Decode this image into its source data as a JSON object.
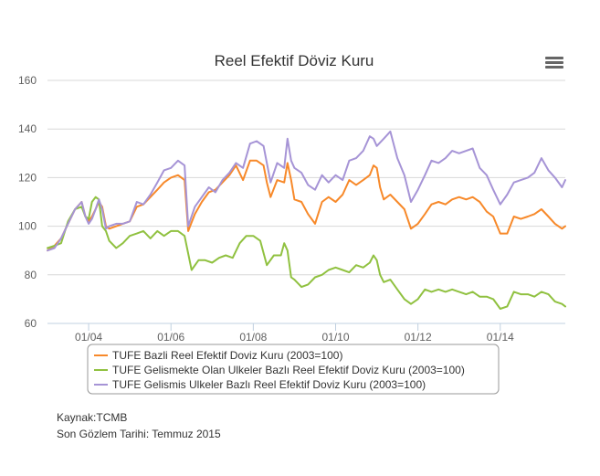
{
  "chart_data": {
    "type": "line",
    "title": "Reel Efektif Döviz Kuru",
    "ylim": [
      60,
      160
    ],
    "yticks": [
      60,
      80,
      100,
      120,
      140,
      160
    ],
    "xlim": [
      2003.0,
      2015.58
    ],
    "xticks": [
      {
        "label": "01/04",
        "x": 2004.0
      },
      {
        "label": "01/06",
        "x": 2006.0
      },
      {
        "label": "01/08",
        "x": 2008.0
      },
      {
        "label": "01/10",
        "x": 2010.0
      },
      {
        "label": "01/12",
        "x": 2012.0
      },
      {
        "label": "01/14",
        "x": 2014.0
      }
    ],
    "series": [
      {
        "name": "TUFE Bazli Reel Efektif Doviz Kuru (2003=100)",
        "color": "#f7892a",
        "points": [
          [
            2003.0,
            90
          ],
          [
            2003.17,
            92
          ],
          [
            2003.33,
            95
          ],
          [
            2003.5,
            101
          ],
          [
            2003.67,
            107
          ],
          [
            2003.83,
            110
          ],
          [
            2003.92,
            104
          ],
          [
            2004.0,
            102
          ],
          [
            2004.08,
            104
          ],
          [
            2004.17,
            107
          ],
          [
            2004.25,
            110
          ],
          [
            2004.33,
            108
          ],
          [
            2004.42,
            100
          ],
          [
            2004.5,
            99
          ],
          [
            2004.67,
            100
          ],
          [
            2004.83,
            101
          ],
          [
            2005.0,
            102
          ],
          [
            2005.17,
            108
          ],
          [
            2005.33,
            109
          ],
          [
            2005.5,
            112
          ],
          [
            2005.67,
            115
          ],
          [
            2005.83,
            118
          ],
          [
            2006.0,
            120
          ],
          [
            2006.17,
            121
          ],
          [
            2006.33,
            119
          ],
          [
            2006.42,
            98
          ],
          [
            2006.58,
            105
          ],
          [
            2006.75,
            110
          ],
          [
            2006.92,
            114
          ],
          [
            2007.08,
            115
          ],
          [
            2007.25,
            118
          ],
          [
            2007.42,
            121
          ],
          [
            2007.58,
            125
          ],
          [
            2007.75,
            119
          ],
          [
            2007.92,
            127
          ],
          [
            2008.08,
            127
          ],
          [
            2008.25,
            125
          ],
          [
            2008.33,
            118
          ],
          [
            2008.42,
            112
          ],
          [
            2008.58,
            119
          ],
          [
            2008.75,
            118
          ],
          [
            2008.83,
            126
          ],
          [
            2008.92,
            119
          ],
          [
            2009.0,
            111
          ],
          [
            2009.17,
            110
          ],
          [
            2009.33,
            105
          ],
          [
            2009.5,
            101
          ],
          [
            2009.67,
            110
          ],
          [
            2009.83,
            112
          ],
          [
            2010.0,
            110
          ],
          [
            2010.17,
            113
          ],
          [
            2010.33,
            119
          ],
          [
            2010.5,
            117
          ],
          [
            2010.67,
            119
          ],
          [
            2010.83,
            121
          ],
          [
            2010.92,
            125
          ],
          [
            2011.0,
            124
          ],
          [
            2011.08,
            116
          ],
          [
            2011.17,
            111
          ],
          [
            2011.33,
            113
          ],
          [
            2011.5,
            110
          ],
          [
            2011.67,
            107
          ],
          [
            2011.83,
            99
          ],
          [
            2012.0,
            101
          ],
          [
            2012.17,
            105
          ],
          [
            2012.33,
            109
          ],
          [
            2012.5,
            110
          ],
          [
            2012.67,
            109
          ],
          [
            2012.83,
            111
          ],
          [
            2013.0,
            112
          ],
          [
            2013.17,
            111
          ],
          [
            2013.33,
            112
          ],
          [
            2013.5,
            110
          ],
          [
            2013.67,
            106
          ],
          [
            2013.83,
            104
          ],
          [
            2014.0,
            97
          ],
          [
            2014.17,
            97
          ],
          [
            2014.33,
            104
          ],
          [
            2014.5,
            103
          ],
          [
            2014.67,
            104
          ],
          [
            2014.83,
            105
          ],
          [
            2015.0,
            107
          ],
          [
            2015.17,
            104
          ],
          [
            2015.33,
            101
          ],
          [
            2015.5,
            99
          ],
          [
            2015.58,
            100
          ]
        ]
      },
      {
        "name": "TUFE Gelismekte Olan Ulkeler Bazlı Reel Efektif Doviz Kuru (2003=100)",
        "color": "#90c140",
        "points": [
          [
            2003.0,
            91
          ],
          [
            2003.17,
            92
          ],
          [
            2003.33,
            93
          ],
          [
            2003.5,
            102
          ],
          [
            2003.67,
            107
          ],
          [
            2003.83,
            108
          ],
          [
            2003.92,
            104
          ],
          [
            2004.0,
            103
          ],
          [
            2004.08,
            110
          ],
          [
            2004.17,
            112
          ],
          [
            2004.25,
            111
          ],
          [
            2004.33,
            100
          ],
          [
            2004.42,
            98
          ],
          [
            2004.5,
            94
          ],
          [
            2004.67,
            91
          ],
          [
            2004.83,
            93
          ],
          [
            2005.0,
            96
          ],
          [
            2005.17,
            97
          ],
          [
            2005.33,
            98
          ],
          [
            2005.5,
            95
          ],
          [
            2005.67,
            98
          ],
          [
            2005.83,
            96
          ],
          [
            2006.0,
            98
          ],
          [
            2006.17,
            98
          ],
          [
            2006.33,
            96
          ],
          [
            2006.5,
            82
          ],
          [
            2006.67,
            86
          ],
          [
            2006.83,
            86
          ],
          [
            2007.0,
            85
          ],
          [
            2007.17,
            87
          ],
          [
            2007.33,
            88
          ],
          [
            2007.5,
            87
          ],
          [
            2007.67,
            93
          ],
          [
            2007.83,
            96
          ],
          [
            2008.0,
            96
          ],
          [
            2008.17,
            94
          ],
          [
            2008.33,
            84
          ],
          [
            2008.5,
            88
          ],
          [
            2008.67,
            88
          ],
          [
            2008.75,
            93
          ],
          [
            2008.83,
            90
          ],
          [
            2008.92,
            79
          ],
          [
            2009.0,
            78
          ],
          [
            2009.17,
            75
          ],
          [
            2009.33,
            76
          ],
          [
            2009.5,
            79
          ],
          [
            2009.67,
            80
          ],
          [
            2009.83,
            82
          ],
          [
            2010.0,
            83
          ],
          [
            2010.17,
            82
          ],
          [
            2010.33,
            81
          ],
          [
            2010.5,
            84
          ],
          [
            2010.67,
            83
          ],
          [
            2010.83,
            85
          ],
          [
            2010.92,
            88
          ],
          [
            2011.0,
            86
          ],
          [
            2011.08,
            80
          ],
          [
            2011.17,
            77
          ],
          [
            2011.33,
            78
          ],
          [
            2011.5,
            74
          ],
          [
            2011.67,
            70
          ],
          [
            2011.83,
            68
          ],
          [
            2012.0,
            70
          ],
          [
            2012.17,
            74
          ],
          [
            2012.33,
            73
          ],
          [
            2012.5,
            74
          ],
          [
            2012.67,
            73
          ],
          [
            2012.83,
            74
          ],
          [
            2013.0,
            73
          ],
          [
            2013.17,
            72
          ],
          [
            2013.33,
            73
          ],
          [
            2013.5,
            71
          ],
          [
            2013.67,
            71
          ],
          [
            2013.83,
            70
          ],
          [
            2014.0,
            66
          ],
          [
            2014.17,
            67
          ],
          [
            2014.33,
            73
          ],
          [
            2014.5,
            72
          ],
          [
            2014.67,
            72
          ],
          [
            2014.83,
            71
          ],
          [
            2015.0,
            73
          ],
          [
            2015.17,
            72
          ],
          [
            2015.33,
            69
          ],
          [
            2015.5,
            68
          ],
          [
            2015.58,
            67
          ]
        ]
      },
      {
        "name": "TUFE Gelismis Ulkeler Bazlı Reel Efektif Doviz Kuru (2003=100)",
        "color": "#a694d6",
        "points": [
          [
            2003.0,
            90
          ],
          [
            2003.17,
            91
          ],
          [
            2003.33,
            95
          ],
          [
            2003.5,
            101
          ],
          [
            2003.67,
            107
          ],
          [
            2003.83,
            110
          ],
          [
            2003.92,
            104
          ],
          [
            2004.0,
            101
          ],
          [
            2004.08,
            103
          ],
          [
            2004.17,
            107
          ],
          [
            2004.25,
            111
          ],
          [
            2004.33,
            107
          ],
          [
            2004.42,
            99
          ],
          [
            2004.5,
            100
          ],
          [
            2004.67,
            101
          ],
          [
            2004.83,
            101
          ],
          [
            2005.0,
            102
          ],
          [
            2005.17,
            110
          ],
          [
            2005.33,
            109
          ],
          [
            2005.5,
            113
          ],
          [
            2005.67,
            118
          ],
          [
            2005.83,
            123
          ],
          [
            2006.0,
            124
          ],
          [
            2006.17,
            127
          ],
          [
            2006.33,
            125
          ],
          [
            2006.42,
            100
          ],
          [
            2006.58,
            108
          ],
          [
            2006.75,
            112
          ],
          [
            2006.92,
            116
          ],
          [
            2007.08,
            114
          ],
          [
            2007.25,
            119
          ],
          [
            2007.42,
            122
          ],
          [
            2007.58,
            126
          ],
          [
            2007.75,
            124
          ],
          [
            2007.92,
            134
          ],
          [
            2008.08,
            135
          ],
          [
            2008.25,
            133
          ],
          [
            2008.33,
            126
          ],
          [
            2008.42,
            118
          ],
          [
            2008.58,
            126
          ],
          [
            2008.75,
            124
          ],
          [
            2008.83,
            136
          ],
          [
            2008.92,
            127
          ],
          [
            2009.0,
            124
          ],
          [
            2009.17,
            122
          ],
          [
            2009.33,
            117
          ],
          [
            2009.5,
            115
          ],
          [
            2009.67,
            121
          ],
          [
            2009.83,
            118
          ],
          [
            2010.0,
            121
          ],
          [
            2010.17,
            119
          ],
          [
            2010.33,
            127
          ],
          [
            2010.5,
            128
          ],
          [
            2010.67,
            131
          ],
          [
            2010.83,
            137
          ],
          [
            2010.92,
            136
          ],
          [
            2011.0,
            133
          ],
          [
            2011.17,
            136
          ],
          [
            2011.33,
            139
          ],
          [
            2011.5,
            128
          ],
          [
            2011.67,
            121
          ],
          [
            2011.83,
            110
          ],
          [
            2012.0,
            115
          ],
          [
            2012.17,
            121
          ],
          [
            2012.33,
            127
          ],
          [
            2012.5,
            126
          ],
          [
            2012.67,
            128
          ],
          [
            2012.83,
            131
          ],
          [
            2013.0,
            130
          ],
          [
            2013.17,
            131
          ],
          [
            2013.33,
            132
          ],
          [
            2013.5,
            124
          ],
          [
            2013.67,
            121
          ],
          [
            2013.83,
            115
          ],
          [
            2014.0,
            109
          ],
          [
            2014.17,
            113
          ],
          [
            2014.33,
            118
          ],
          [
            2014.5,
            119
          ],
          [
            2014.67,
            120
          ],
          [
            2014.83,
            122
          ],
          [
            2015.0,
            128
          ],
          [
            2015.17,
            123
          ],
          [
            2015.33,
            120
          ],
          [
            2015.5,
            116
          ],
          [
            2015.58,
            119
          ]
        ]
      }
    ],
    "legend": "bottom"
  },
  "source_label": "Kaynak:TCMB",
  "last_observation": "Son Gözlem Tarihi: Temmuz 2015",
  "menu_icon": "hamburger-menu-icon"
}
